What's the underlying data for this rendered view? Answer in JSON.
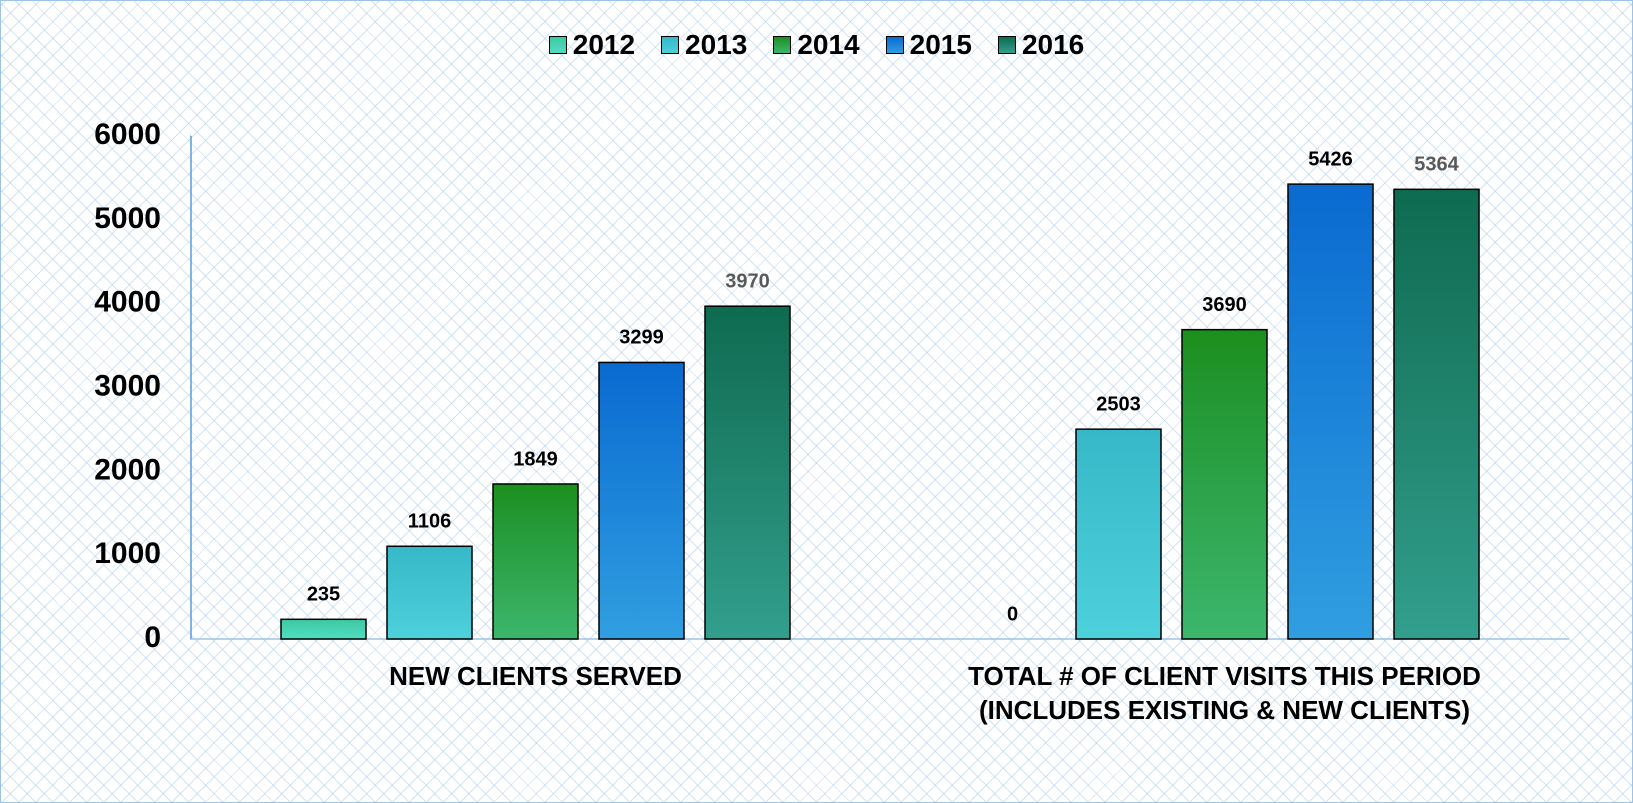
{
  "chart_data": {
    "type": "bar",
    "categories": [
      "NEW CLIENTS SERVED",
      "TOTAL # OF CLIENT VISITS THIS PERIOD\n(INCLUDES EXISTING & NEW CLIENTS)"
    ],
    "series": [
      {
        "name": "2012",
        "color": "#3cc9a0",
        "label_color": "#000000",
        "values": [
          235,
          0
        ]
      },
      {
        "name": "2013",
        "color": "#36b8c8",
        "label_color": "#000000",
        "values": [
          1106,
          2503
        ]
      },
      {
        "name": "2014",
        "color": "#1c8f1c",
        "label_color": "#000000",
        "values": [
          1849,
          3690
        ]
      },
      {
        "name": "2015",
        "color": "#0a6ad0",
        "label_color": "#000000",
        "values": [
          3299,
          5426
        ]
      },
      {
        "name": "2016",
        "color": "#0d6b50",
        "label_color": "#595959",
        "values": [
          3970,
          5364
        ]
      }
    ],
    "ylim": [
      0,
      6000
    ],
    "yticks": [
      0,
      1000,
      2000,
      3000,
      4000,
      5000,
      6000
    ],
    "legend": "top"
  }
}
